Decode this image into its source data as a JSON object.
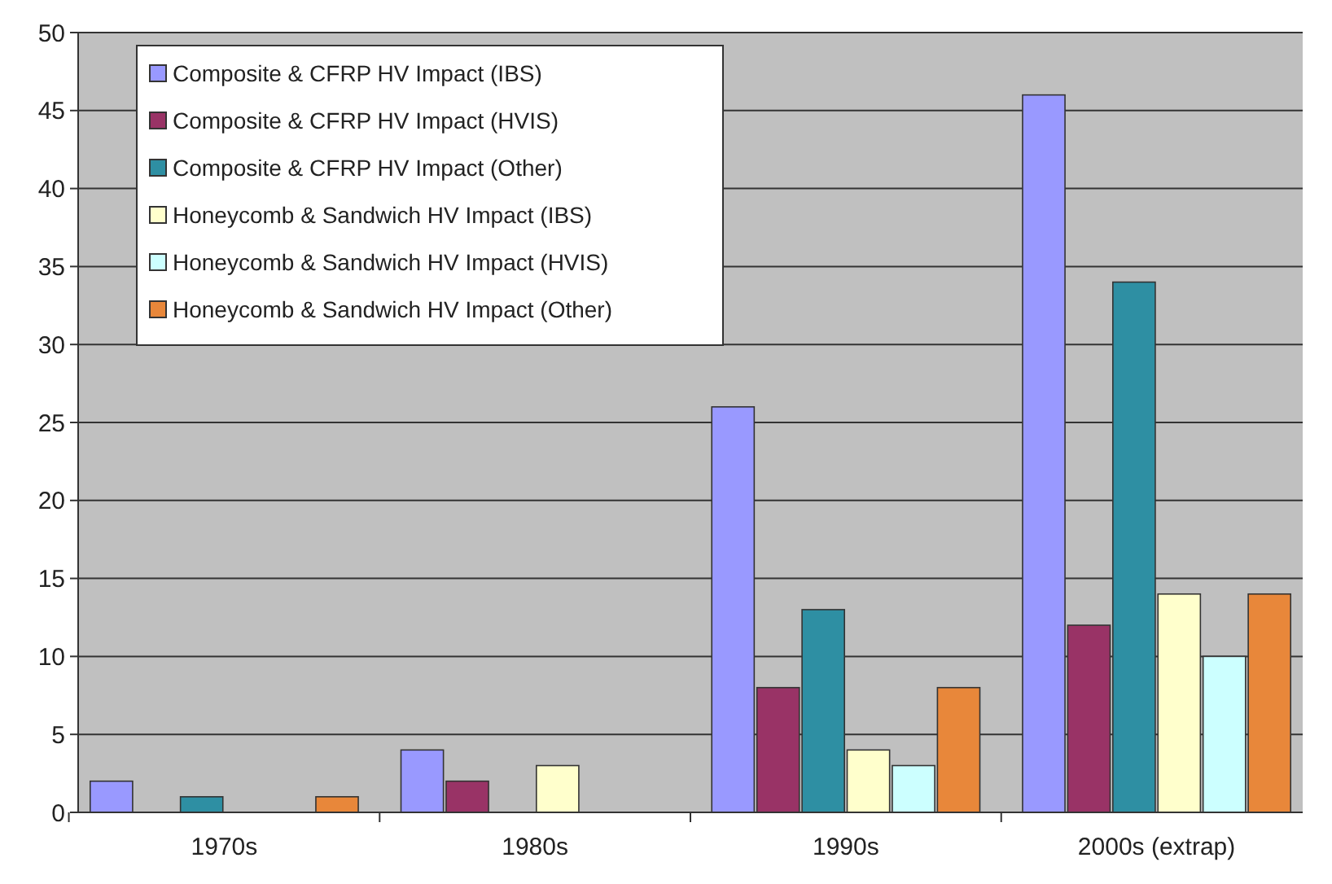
{
  "chart_data": {
    "type": "bar",
    "categories": [
      "1970s",
      "1980s",
      "1990s",
      "2000s (extrap)"
    ],
    "series": [
      {
        "name": "Composite & CFRP HV Impact (IBS)",
        "color": "#9999ff",
        "values": [
          2,
          4,
          26,
          46
        ]
      },
      {
        "name": "Composite & CFRP HV Impact (HVIS)",
        "color": "#993366",
        "values": [
          0,
          2,
          8,
          12
        ]
      },
      {
        "name": "Composite & CFRP HV Impact (Other)",
        "color": "#2e8fa3",
        "values": [
          1,
          0,
          13,
          34
        ]
      },
      {
        "name": "Honeycomb & Sandwich HV Impact (IBS)",
        "color": "#ffffcc",
        "values": [
          0,
          3,
          4,
          14
        ]
      },
      {
        "name": "Honeycomb & Sandwich HV Impact (HVIS)",
        "color": "#ccffff",
        "values": [
          0,
          0,
          3,
          10
        ]
      },
      {
        "name": "Honeycomb & Sandwich HV Impact (Other)",
        "color": "#e8873a",
        "values": [
          1,
          0,
          8,
          14
        ]
      }
    ],
    "ylim": [
      0,
      50
    ],
    "yticks": [
      0,
      5,
      10,
      15,
      20,
      25,
      30,
      35,
      40,
      45,
      50
    ],
    "grid": "y",
    "legend": "top left"
  }
}
